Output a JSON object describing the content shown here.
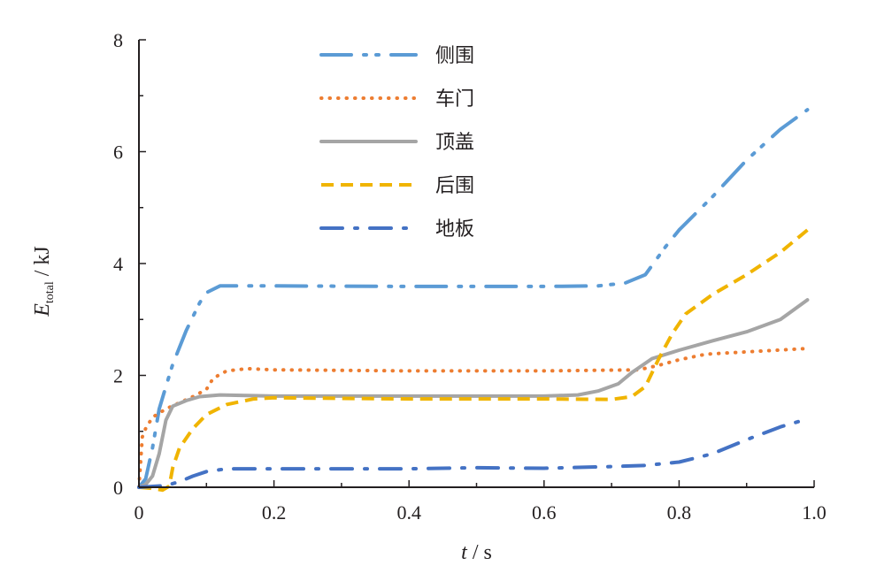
{
  "chart_data": {
    "type": "line",
    "x_axis": {
      "label_var": "t",
      "label_unit": " / s",
      "range": [
        0,
        1.0
      ],
      "ticks": [
        0,
        0.2,
        0.4,
        0.6,
        0.8,
        1.0
      ],
      "tick_labels": [
        "0",
        "0.2",
        "0.4",
        "0.6",
        "0.8",
        "1.0"
      ]
    },
    "y_axis": {
      "label_var": "E",
      "label_sub": "total",
      "label_unit": " / kJ",
      "range": [
        0,
        8
      ],
      "ticks": [
        0,
        2,
        4,
        6,
        8
      ],
      "tick_labels": [
        "0",
        "2",
        "4",
        "6",
        "8"
      ]
    },
    "grid": false,
    "legend_position": "top-center",
    "series": [
      {
        "name": "侧围",
        "color": "#5b9bd5",
        "style": "long-dash-dot-dot",
        "points": [
          [
            0,
            0
          ],
          [
            0.01,
            0.15
          ],
          [
            0.02,
            0.7
          ],
          [
            0.03,
            1.4
          ],
          [
            0.04,
            1.8
          ],
          [
            0.05,
            2.2
          ],
          [
            0.06,
            2.5
          ],
          [
            0.07,
            2.8
          ],
          [
            0.08,
            3.05
          ],
          [
            0.09,
            3.3
          ],
          [
            0.1,
            3.48
          ],
          [
            0.12,
            3.6
          ],
          [
            0.2,
            3.6
          ],
          [
            0.4,
            3.59
          ],
          [
            0.6,
            3.59
          ],
          [
            0.68,
            3.6
          ],
          [
            0.72,
            3.65
          ],
          [
            0.75,
            3.8
          ],
          [
            0.78,
            4.3
          ],
          [
            0.8,
            4.6
          ],
          [
            0.85,
            5.2
          ],
          [
            0.9,
            5.85
          ],
          [
            0.95,
            6.4
          ],
          [
            0.99,
            6.75
          ]
        ]
      },
      {
        "name": "车门",
        "color": "#ed7d31",
        "style": "dotted",
        "points": [
          [
            0,
            0
          ],
          [
            0.005,
            0.9
          ],
          [
            0.01,
            1.05
          ],
          [
            0.02,
            1.25
          ],
          [
            0.04,
            1.4
          ],
          [
            0.08,
            1.62
          ],
          [
            0.1,
            1.75
          ],
          [
            0.11,
            1.95
          ],
          [
            0.13,
            2.08
          ],
          [
            0.16,
            2.12
          ],
          [
            0.2,
            2.1
          ],
          [
            0.4,
            2.08
          ],
          [
            0.6,
            2.08
          ],
          [
            0.74,
            2.1
          ],
          [
            0.77,
            2.18
          ],
          [
            0.8,
            2.28
          ],
          [
            0.84,
            2.38
          ],
          [
            0.9,
            2.42
          ],
          [
            0.99,
            2.48
          ]
        ]
      },
      {
        "name": "顶盖",
        "color": "#a5a5a5",
        "style": "solid",
        "points": [
          [
            0,
            0
          ],
          [
            0.01,
            0.05
          ],
          [
            0.02,
            0.2
          ],
          [
            0.03,
            0.6
          ],
          [
            0.04,
            1.2
          ],
          [
            0.05,
            1.45
          ],
          [
            0.07,
            1.55
          ],
          [
            0.09,
            1.62
          ],
          [
            0.12,
            1.65
          ],
          [
            0.2,
            1.63
          ],
          [
            0.4,
            1.63
          ],
          [
            0.6,
            1.63
          ],
          [
            0.65,
            1.65
          ],
          [
            0.68,
            1.72
          ],
          [
            0.71,
            1.85
          ],
          [
            0.73,
            2.05
          ],
          [
            0.76,
            2.3
          ],
          [
            0.8,
            2.45
          ],
          [
            0.85,
            2.62
          ],
          [
            0.9,
            2.78
          ],
          [
            0.95,
            3.0
          ],
          [
            0.99,
            3.35
          ]
        ]
      },
      {
        "name": "后围",
        "color": "#f0b400",
        "style": "dashed",
        "points": [
          [
            0,
            0
          ],
          [
            0.02,
            -0.02
          ],
          [
            0.035,
            -0.05
          ],
          [
            0.045,
            0.02
          ],
          [
            0.05,
            0.35
          ],
          [
            0.06,
            0.7
          ],
          [
            0.08,
            1.05
          ],
          [
            0.1,
            1.3
          ],
          [
            0.13,
            1.48
          ],
          [
            0.17,
            1.58
          ],
          [
            0.2,
            1.6
          ],
          [
            0.4,
            1.58
          ],
          [
            0.6,
            1.58
          ],
          [
            0.7,
            1.57
          ],
          [
            0.73,
            1.62
          ],
          [
            0.75,
            1.8
          ],
          [
            0.77,
            2.3
          ],
          [
            0.79,
            2.75
          ],
          [
            0.81,
            3.1
          ],
          [
            0.85,
            3.45
          ],
          [
            0.9,
            3.8
          ],
          [
            0.95,
            4.2
          ],
          [
            0.99,
            4.6
          ]
        ]
      },
      {
        "name": "地板",
        "color": "#4472c4",
        "style": "dash-dot",
        "points": [
          [
            0,
            0
          ],
          [
            0.04,
            0.03
          ],
          [
            0.06,
            0.1
          ],
          [
            0.08,
            0.2
          ],
          [
            0.1,
            0.28
          ],
          [
            0.13,
            0.33
          ],
          [
            0.2,
            0.33
          ],
          [
            0.4,
            0.33
          ],
          [
            0.5,
            0.35
          ],
          [
            0.6,
            0.34
          ],
          [
            0.7,
            0.37
          ],
          [
            0.75,
            0.39
          ],
          [
            0.8,
            0.45
          ],
          [
            0.85,
            0.6
          ],
          [
            0.9,
            0.85
          ],
          [
            0.95,
            1.08
          ],
          [
            0.99,
            1.22
          ]
        ]
      }
    ]
  }
}
